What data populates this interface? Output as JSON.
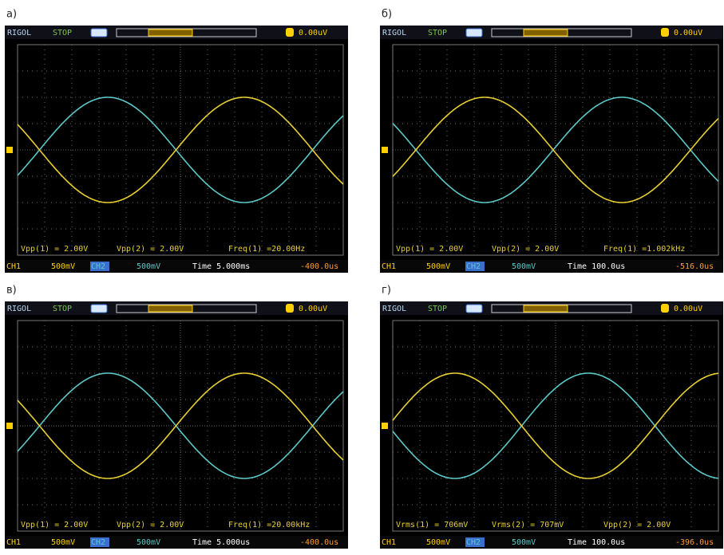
{
  "panels": [
    {
      "label": "а)",
      "header": {
        "brand": "RIGOL",
        "status": "STOP",
        "trigger": "0.00uV"
      },
      "measurements": [
        "Vpp(1) = 2.00V",
        "Vpp(2) = 2.00V",
        "Freq(1) =20.00Hz"
      ],
      "footer": {
        "ch1": "CH1",
        "ch1_scale": "500mV",
        "ch2": "CH2",
        "ch2_scale": "500mV",
        "time": "Time 5.000ms",
        "offset": "-400.0us"
      }
    },
    {
      "label": "б)",
      "header": {
        "brand": "RIGOL",
        "status": "STOP",
        "trigger": "0.00uV"
      },
      "measurements": [
        "Vpp(1) = 2.00V",
        "Vpp(2) = 2.00V",
        "Freq(1) =1.002kHz"
      ],
      "footer": {
        "ch1": "CH1",
        "ch1_scale": "500mV",
        "ch2": "CH2",
        "ch2_scale": "500mV",
        "time": "Time 100.0us",
        "offset": "-516.0us"
      }
    },
    {
      "label": "в)",
      "header": {
        "brand": "RIGOL",
        "status": "STOP",
        "trigger": "0.00uV"
      },
      "measurements": [
        "Vpp(1) = 2.00V",
        "Vpp(2) = 2.00V",
        "Freq(1) =20.00kHz"
      ],
      "footer": {
        "ch1": "CH1",
        "ch1_scale": "500mV",
        "ch2": "CH2",
        "ch2_scale": "500mV",
        "time": "Time 5.000us",
        "offset": "-400.0us"
      }
    },
    {
      "label": "г)",
      "header": {
        "brand": "RIGOL",
        "status": "STOP",
        "trigger": "0.00uV"
      },
      "measurements": [
        "Vrms(1) = 706mV",
        "Vrms(2) = 707mV",
        "Vpp(2) = 2.00V"
      ],
      "footer": {
        "ch1": "CH1",
        "ch1_scale": "500mV",
        "ch2": "CH2",
        "ch2_scale": "500mV",
        "time": "Time 100.0us",
        "offset": "-396.0us"
      }
    }
  ]
}
